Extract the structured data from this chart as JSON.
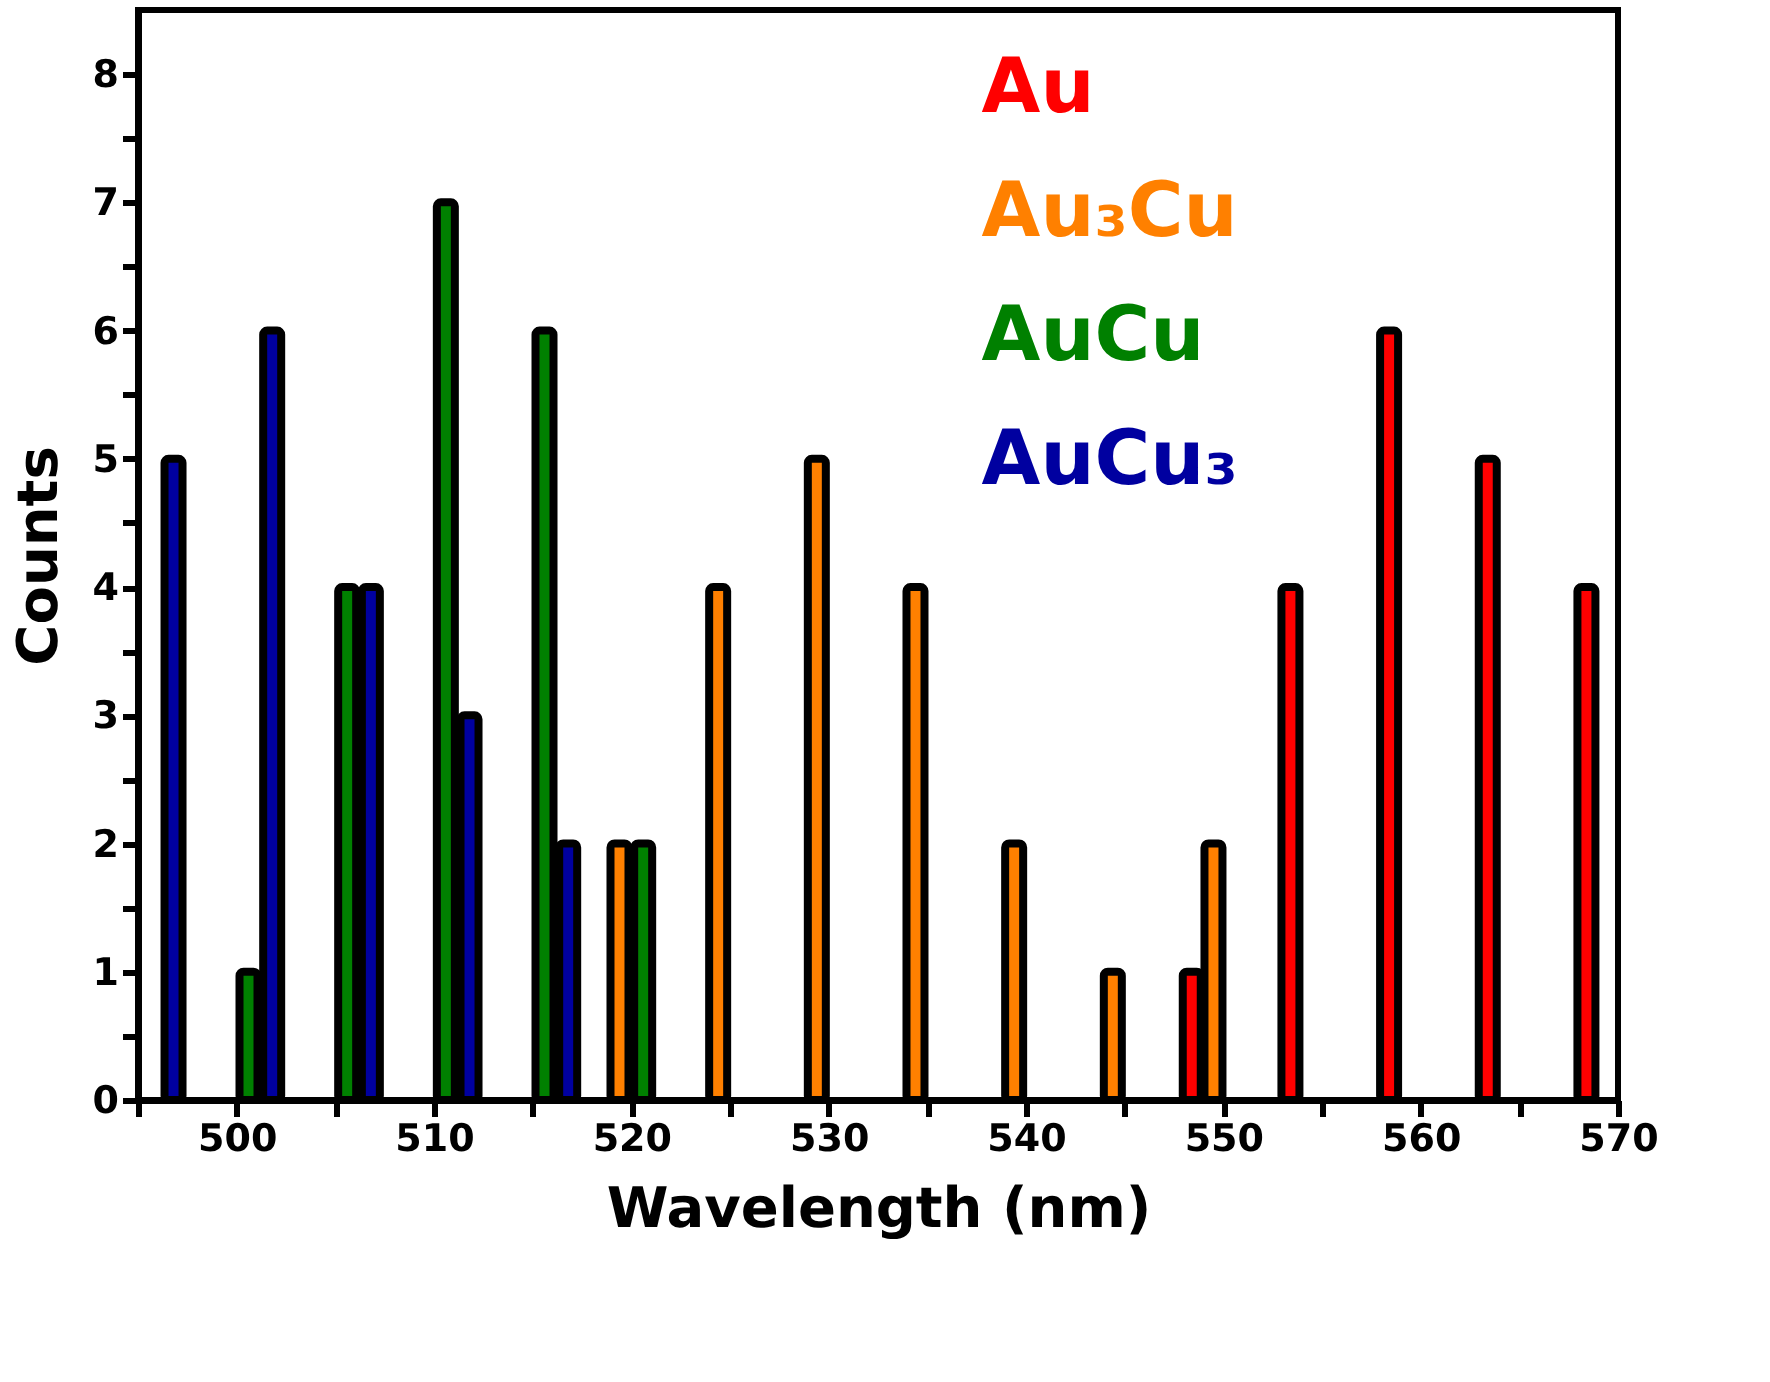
{
  "chart_data": {
    "type": "bar",
    "xlabel": "Wavelength (nm)",
    "ylabel": "Counts",
    "xlim": [
      495,
      570
    ],
    "ylim": [
      0,
      8.5
    ],
    "xticks": [
      {
        "value": 495,
        "label": null
      },
      500,
      {
        "value": 505,
        "label": null
      },
      510,
      {
        "value": 515,
        "label": null
      },
      520,
      {
        "value": 525,
        "label": null
      },
      530,
      {
        "value": 535,
        "label": null
      },
      540,
      {
        "value": 545,
        "label": null
      },
      550,
      {
        "value": 555,
        "label": null
      },
      560,
      {
        "value": 565,
        "label": null
      },
      570
    ],
    "yticks": [
      0,
      {
        "value": 0.5,
        "label": null
      },
      1,
      {
        "value": 1.5,
        "label": null
      },
      2,
      {
        "value": 2.5,
        "label": null
      },
      3,
      {
        "value": 3.5,
        "label": null
      },
      4,
      {
        "value": 4.5,
        "label": null
      },
      5,
      {
        "value": 5.5,
        "label": null
      },
      6,
      {
        "value": 6.5,
        "label": null
      },
      7,
      {
        "value": 7.5,
        "label": null
      },
      8
    ],
    "grid": false,
    "legend": "top right",
    "series": [
      {
        "name": "Au",
        "color": "#ff0000",
        "x": [
          548.4,
          553.4,
          558.4,
          563.4,
          568.4
        ],
        "values": [
          1,
          4,
          6,
          5,
          4
        ]
      },
      {
        "name": "Au₃Cu",
        "color": "#ff8000",
        "x": [
          519.4,
          524.4,
          529.4,
          534.4,
          539.4,
          544.4,
          549.5
        ],
        "values": [
          2,
          4,
          5,
          4,
          2,
          1,
          2
        ]
      },
      {
        "name": "AuCu",
        "color": "#008000",
        "x": [
          500.6,
          505.6,
          510.6,
          515.6,
          520.6
        ],
        "values": [
          1,
          4,
          7,
          6,
          2
        ]
      },
      {
        "name": "AuCu₃",
        "color": "#0000a0",
        "x": [
          496.8,
          501.8,
          506.8,
          511.8,
          516.8
        ],
        "values": [
          5,
          6,
          4,
          3,
          2
        ]
      }
    ]
  }
}
